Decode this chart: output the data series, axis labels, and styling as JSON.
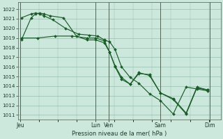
{
  "xlabel": "Pression niveau de la mer( hPa )",
  "bg_color": "#cce8dc",
  "grid_color": "#96bfaf",
  "line_color": "#1a5c28",
  "vline_color": "#2a3a2a",
  "ylim": [
    1010.5,
    1022.7
  ],
  "yticks": [
    1011,
    1012,
    1013,
    1014,
    1015,
    1016,
    1017,
    1018,
    1019,
    1020,
    1021,
    1022
  ],
  "day_labels": [
    "Jeu",
    "Lun",
    "Ven",
    "Sam",
    "Dim"
  ],
  "day_x": [
    0.0,
    3.5,
    4.1,
    6.5,
    8.8
  ],
  "xlim": [
    -0.1,
    9.3
  ],
  "series": [
    {
      "x": [
        0.05,
        0.5,
        0.7,
        0.9,
        1.1,
        1.4,
        2.0,
        2.6,
        3.1,
        3.5,
        3.9,
        4.15,
        4.4,
        4.7,
        5.1,
        5.5,
        6.0,
        6.5,
        7.1,
        7.7,
        8.2,
        8.7
      ],
      "y": [
        1018.8,
        1021.1,
        1021.5,
        1021.6,
        1021.5,
        1021.3,
        1021.1,
        1019.2,
        1018.8,
        1018.8,
        1018.5,
        1017.5,
        1016.1,
        1014.9,
        1014.2,
        1015.3,
        1015.2,
        1013.3,
        1012.6,
        1011.1,
        1013.8,
        1013.6
      ]
    },
    {
      "x": [
        0.05,
        0.8,
        1.6,
        2.4,
        3.1,
        3.5,
        3.9,
        4.15,
        4.4,
        4.7,
        5.1,
        5.5,
        6.0,
        6.5,
        7.1,
        7.7,
        8.2,
        8.7
      ],
      "y": [
        1019.0,
        1019.0,
        1019.2,
        1019.2,
        1019.0,
        1019.0,
        1018.7,
        1017.5,
        1016.0,
        1014.7,
        1014.2,
        1015.4,
        1015.1,
        1013.3,
        1012.7,
        1011.2,
        1013.9,
        1013.6
      ]
    },
    {
      "x": [
        0.05,
        0.5,
        0.7,
        0.9,
        1.1,
        1.5,
        2.1,
        2.7,
        3.2,
        3.6,
        3.9,
        4.15,
        4.4,
        4.7,
        5.1,
        5.5,
        6.0,
        6.5,
        7.1,
        7.7,
        8.2,
        8.7
      ],
      "y": [
        1021.1,
        1021.5,
        1021.6,
        1021.5,
        1021.3,
        1020.9,
        1020.0,
        1019.4,
        1019.3,
        1019.2,
        1018.8,
        1018.6,
        1017.8,
        1016.0,
        1014.9,
        1014.3,
        1013.2,
        1012.5,
        1011.1,
        1013.9,
        1013.7,
        1013.5
      ]
    }
  ]
}
